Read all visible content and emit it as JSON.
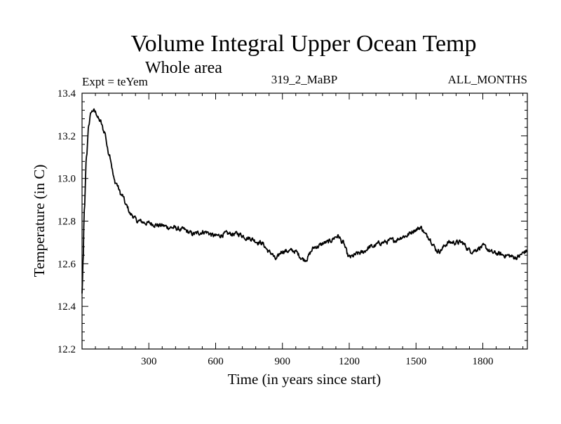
{
  "chart_data": {
    "type": "line",
    "title": "Volume Integral Upper Ocean Temp",
    "subtitle": "Whole area",
    "left_label": "Expt = teYem",
    "center_label": "319_2_MaBP",
    "right_label": "ALL_MONTHS",
    "xlabel": "Time (in years since start)",
    "ylabel": "Temperature (in C)",
    "xlim": [
      0,
      2000
    ],
    "ylim": [
      12.2,
      13.4
    ],
    "x_ticks": [
      300,
      600,
      900,
      1200,
      1500,
      1800
    ],
    "y_ticks": [
      12.2,
      12.4,
      12.6,
      12.8,
      13.0,
      13.2,
      13.4
    ],
    "y_tick_labels": [
      "12.2",
      "12.4",
      "12.6",
      "12.8",
      "13.0",
      "13.2",
      "13.4"
    ],
    "line_color": "#000000",
    "series": [
      {
        "name": "Volume Integral Upper Ocean Temp",
        "x": [
          0,
          5,
          10,
          20,
          30,
          40,
          50,
          60,
          80,
          100,
          120,
          150,
          180,
          200,
          220,
          250,
          300,
          350,
          400,
          450,
          500,
          550,
          600,
          650,
          700,
          750,
          800,
          850,
          870,
          900,
          950,
          1000,
          1050,
          1100,
          1150,
          1170,
          1200,
          1250,
          1300,
          1350,
          1400,
          1450,
          1500,
          1520,
          1550,
          1600,
          1650,
          1700,
          1750,
          1800,
          1850,
          1900,
          1950,
          2000
        ],
        "values": [
          12.46,
          12.62,
          12.85,
          13.1,
          13.25,
          13.31,
          13.32,
          13.31,
          13.27,
          13.22,
          13.12,
          12.98,
          12.92,
          12.87,
          12.83,
          12.8,
          12.79,
          12.78,
          12.77,
          12.76,
          12.74,
          12.75,
          12.73,
          12.74,
          12.74,
          12.72,
          12.7,
          12.65,
          12.62,
          12.66,
          12.66,
          12.62,
          12.68,
          12.7,
          12.73,
          12.7,
          12.63,
          12.65,
          12.68,
          12.7,
          12.71,
          12.73,
          12.76,
          12.77,
          12.73,
          12.66,
          12.7,
          12.7,
          12.66,
          12.68,
          12.65,
          12.64,
          12.63,
          12.66
        ]
      }
    ]
  }
}
